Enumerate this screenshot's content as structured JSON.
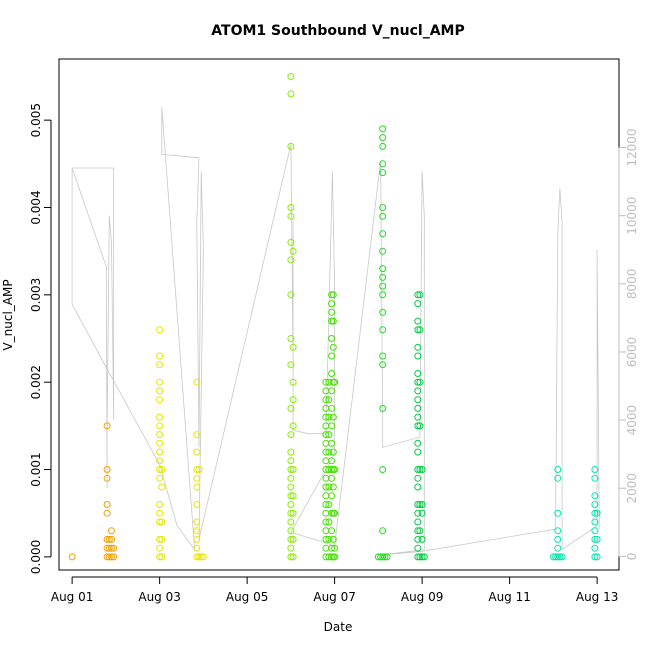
{
  "chart_data": {
    "type": "scatter",
    "title": "ATOM1 Southbound V_nucl_AMP",
    "xlabel": "Date",
    "ylabel": "V_nucl_AMP",
    "x_ticks": [
      "Aug 01",
      "Aug 03",
      "Aug 05",
      "Aug 07",
      "Aug 09",
      "Aug 11",
      "Aug 13"
    ],
    "x_tick_days": [
      1,
      3,
      5,
      7,
      9,
      11,
      13
    ],
    "xlim_days": [
      0.7,
      13.5
    ],
    "ylim": [
      -0.00015,
      0.0057
    ],
    "y_ticks": [
      0.0,
      0.001,
      0.002,
      0.003,
      0.004,
      0.005
    ],
    "y_tick_labels": [
      "0.000",
      "0.001",
      "0.002",
      "0.003",
      "0.004",
      "0.005"
    ],
    "y2lim": [
      -400,
      14600
    ],
    "y2_ticks": [
      0,
      2000,
      4000,
      6000,
      8000,
      10000,
      12000
    ],
    "y2_tick_labels": [
      "0",
      "2000",
      "4000",
      "6000",
      "8000",
      "10000",
      "12000"
    ],
    "series": [
      {
        "color": "#f0a000",
        "points": [
          [
            1.0,
            0.0
          ],
          [
            1.8,
            0.0015
          ],
          [
            1.8,
            0.001
          ],
          [
            1.8,
            0.0009
          ],
          [
            1.8,
            0.0006
          ],
          [
            1.8,
            0.0005
          ],
          [
            1.8,
            0.0002
          ],
          [
            1.8,
            0.0001
          ],
          [
            1.8,
            0.0
          ],
          [
            1.85,
            0.0002
          ],
          [
            1.85,
            0.0001
          ],
          [
            1.85,
            0.0
          ],
          [
            1.9,
            0.0003
          ],
          [
            1.9,
            0.0002
          ],
          [
            1.9,
            0.0001
          ],
          [
            1.9,
            0.0
          ],
          [
            1.95,
            0.0001
          ],
          [
            1.95,
            0.0
          ]
        ]
      },
      {
        "color": "#e6e600",
        "points": [
          [
            3.0,
            0.0026
          ],
          [
            3.0,
            0.0023
          ],
          [
            3.0,
            0.0022
          ],
          [
            3.0,
            0.002
          ],
          [
            3.0,
            0.0019
          ],
          [
            3.0,
            0.0018
          ],
          [
            3.0,
            0.0016
          ],
          [
            3.0,
            0.0015
          ],
          [
            3.0,
            0.0014
          ],
          [
            3.0,
            0.0013
          ],
          [
            3.0,
            0.0012
          ],
          [
            3.0,
            0.0011
          ],
          [
            3.0,
            0.001
          ],
          [
            3.0,
            0.0009
          ],
          [
            3.0,
            0.0006
          ],
          [
            3.0,
            0.0005
          ],
          [
            3.0,
            0.0004
          ],
          [
            3.0,
            0.0002
          ],
          [
            3.0,
            0.0001
          ],
          [
            3.0,
            0.0
          ],
          [
            3.05,
            0.001
          ],
          [
            3.05,
            0.0008
          ],
          [
            3.05,
            0.0004
          ],
          [
            3.05,
            0.0002
          ],
          [
            3.05,
            0.0
          ],
          [
            3.85,
            0.002
          ],
          [
            3.85,
            0.0014
          ],
          [
            3.85,
            0.0012
          ],
          [
            3.85,
            0.001
          ],
          [
            3.85,
            0.0009
          ],
          [
            3.85,
            0.0008
          ],
          [
            3.85,
            0.0006
          ],
          [
            3.85,
            0.0004
          ],
          [
            3.85,
            0.0003
          ],
          [
            3.85,
            0.0002
          ],
          [
            3.85,
            0.0001
          ],
          [
            3.85,
            0.0
          ],
          [
            3.9,
            0.001
          ],
          [
            3.9,
            0.0
          ],
          [
            3.95,
            0.0
          ],
          [
            4.0,
            0.0
          ]
        ]
      },
      {
        "color": "#88ee00",
        "points": [
          [
            6.0,
            0.0055
          ],
          [
            6.0,
            0.0053
          ],
          [
            6.0,
            0.0047
          ],
          [
            6.0,
            0.004
          ],
          [
            6.0,
            0.0039
          ],
          [
            6.0,
            0.0036
          ],
          [
            6.0,
            0.0034
          ],
          [
            6.0,
            0.003
          ],
          [
            6.0,
            0.0025
          ],
          [
            6.0,
            0.0022
          ],
          [
            6.0,
            0.0017
          ],
          [
            6.0,
            0.0014
          ],
          [
            6.0,
            0.0012
          ],
          [
            6.0,
            0.0011
          ],
          [
            6.0,
            0.001
          ],
          [
            6.0,
            0.0009
          ],
          [
            6.0,
            0.0008
          ],
          [
            6.0,
            0.0007
          ],
          [
            6.0,
            0.0006
          ],
          [
            6.0,
            0.0005
          ],
          [
            6.0,
            0.0004
          ],
          [
            6.0,
            0.0003
          ],
          [
            6.0,
            0.0002
          ],
          [
            6.0,
            0.0001
          ],
          [
            6.0,
            0.0
          ],
          [
            6.05,
            0.0035
          ],
          [
            6.05,
            0.0024
          ],
          [
            6.05,
            0.002
          ],
          [
            6.05,
            0.0018
          ],
          [
            6.05,
            0.0015
          ],
          [
            6.05,
            0.001
          ],
          [
            6.05,
            0.0007
          ],
          [
            6.05,
            0.0005
          ],
          [
            6.05,
            0.0002
          ],
          [
            6.05,
            0.0
          ]
        ]
      },
      {
        "color": "#44e000",
        "points": [
          [
            6.8,
            0.002
          ],
          [
            6.8,
            0.0019
          ],
          [
            6.8,
            0.0018
          ],
          [
            6.8,
            0.0017
          ],
          [
            6.8,
            0.0016
          ],
          [
            6.8,
            0.0015
          ],
          [
            6.8,
            0.0014
          ],
          [
            6.8,
            0.0013
          ],
          [
            6.8,
            0.0012
          ],
          [
            6.8,
            0.0011
          ],
          [
            6.8,
            0.001
          ],
          [
            6.8,
            0.0009
          ],
          [
            6.8,
            0.0008
          ],
          [
            6.8,
            0.0007
          ],
          [
            6.8,
            0.0006
          ],
          [
            6.8,
            0.0005
          ],
          [
            6.8,
            0.0004
          ],
          [
            6.8,
            0.0003
          ],
          [
            6.8,
            0.0002
          ],
          [
            6.8,
            0.0001
          ],
          [
            6.8,
            0.0
          ],
          [
            6.87,
            0.002
          ],
          [
            6.87,
            0.0018
          ],
          [
            6.87,
            0.0016
          ],
          [
            6.87,
            0.0014
          ],
          [
            6.87,
            0.0012
          ],
          [
            6.87,
            0.001
          ],
          [
            6.87,
            0.0008
          ],
          [
            6.87,
            0.0006
          ],
          [
            6.87,
            0.0004
          ],
          [
            6.87,
            0.0002
          ],
          [
            6.87,
            0.0
          ],
          [
            6.93,
            0.003
          ],
          [
            6.93,
            0.0029
          ],
          [
            6.93,
            0.0028
          ],
          [
            6.93,
            0.0027
          ],
          [
            6.93,
            0.0025
          ],
          [
            6.93,
            0.0023
          ],
          [
            6.93,
            0.0021
          ],
          [
            6.93,
            0.0019
          ],
          [
            6.93,
            0.0017
          ],
          [
            6.93,
            0.0015
          ],
          [
            6.93,
            0.0013
          ],
          [
            6.93,
            0.0011
          ],
          [
            6.93,
            0.001
          ],
          [
            6.93,
            0.0009
          ],
          [
            6.93,
            0.0007
          ],
          [
            6.93,
            0.0005
          ],
          [
            6.93,
            0.0003
          ],
          [
            6.93,
            0.0001
          ],
          [
            6.93,
            0.0
          ],
          [
            6.97,
            0.003
          ],
          [
            6.97,
            0.0027
          ],
          [
            6.97,
            0.0024
          ],
          [
            6.97,
            0.002
          ],
          [
            6.97,
            0.0016
          ],
          [
            6.97,
            0.0012
          ],
          [
            6.97,
            0.001
          ],
          [
            6.97,
            0.0008
          ],
          [
            6.97,
            0.0005
          ],
          [
            6.97,
            0.0002
          ],
          [
            6.97,
            0.0
          ],
          [
            7.0,
            0.002
          ],
          [
            7.0,
            0.001
          ],
          [
            7.0,
            0.0005
          ],
          [
            7.0,
            0.0001
          ],
          [
            7.0,
            0.0
          ]
        ]
      },
      {
        "color": "#22dd22",
        "points": [
          [
            8.0,
            0.0
          ],
          [
            8.05,
            0.0
          ],
          [
            8.1,
            0.0
          ],
          [
            8.1,
            0.0003
          ],
          [
            8.1,
            0.001
          ],
          [
            8.1,
            0.0017
          ],
          [
            8.1,
            0.0022
          ],
          [
            8.1,
            0.0023
          ],
          [
            8.1,
            0.0026
          ],
          [
            8.1,
            0.0028
          ],
          [
            8.1,
            0.003
          ],
          [
            8.1,
            0.0031
          ],
          [
            8.1,
            0.0032
          ],
          [
            8.1,
            0.0033
          ],
          [
            8.1,
            0.0035
          ],
          [
            8.1,
            0.0037
          ],
          [
            8.1,
            0.0039
          ],
          [
            8.1,
            0.004
          ],
          [
            8.1,
            0.0044
          ],
          [
            8.1,
            0.0045
          ],
          [
            8.1,
            0.0047
          ],
          [
            8.1,
            0.0048
          ],
          [
            8.1,
            0.0049
          ],
          [
            8.15,
            0.0
          ],
          [
            8.2,
            0.0
          ]
        ]
      },
      {
        "color": "#00cc44",
        "points": [
          [
            8.9,
            0.003
          ],
          [
            8.9,
            0.0029
          ],
          [
            8.9,
            0.0027
          ],
          [
            8.9,
            0.0026
          ],
          [
            8.9,
            0.0024
          ],
          [
            8.9,
            0.0023
          ],
          [
            8.9,
            0.0021
          ],
          [
            8.9,
            0.002
          ],
          [
            8.9,
            0.0019
          ],
          [
            8.9,
            0.0018
          ],
          [
            8.9,
            0.0017
          ],
          [
            8.9,
            0.0016
          ],
          [
            8.9,
            0.0015
          ],
          [
            8.9,
            0.0013
          ],
          [
            8.9,
            0.0012
          ],
          [
            8.9,
            0.001
          ],
          [
            8.9,
            0.0009
          ],
          [
            8.9,
            0.0008
          ],
          [
            8.9,
            0.0006
          ],
          [
            8.9,
            0.0005
          ],
          [
            8.9,
            0.0004
          ],
          [
            8.9,
            0.0003
          ],
          [
            8.9,
            0.0002
          ],
          [
            8.9,
            0.0001
          ],
          [
            8.9,
            0.0
          ],
          [
            8.95,
            0.003
          ],
          [
            8.95,
            0.0026
          ],
          [
            8.95,
            0.002
          ],
          [
            8.95,
            0.0015
          ],
          [
            8.95,
            0.001
          ],
          [
            8.95,
            0.0006
          ],
          [
            8.95,
            0.0003
          ],
          [
            8.95,
            0.0
          ],
          [
            9.0,
            0.001
          ],
          [
            9.0,
            0.0006
          ],
          [
            9.0,
            0.0005
          ],
          [
            9.0,
            0.0002
          ],
          [
            9.0,
            0.0
          ],
          [
            9.05,
            0.0
          ]
        ]
      },
      {
        "color": "#00e6b0",
        "points": [
          [
            12.0,
            0.0
          ],
          [
            12.05,
            0.0
          ],
          [
            12.1,
            0.001
          ],
          [
            12.1,
            0.0009
          ],
          [
            12.1,
            0.0005
          ],
          [
            12.1,
            0.0003
          ],
          [
            12.1,
            0.0002
          ],
          [
            12.1,
            0.0001
          ],
          [
            12.1,
            0.0
          ],
          [
            12.15,
            0.0
          ],
          [
            12.2,
            0.0
          ],
          [
            12.95,
            0.001
          ],
          [
            12.95,
            0.0009
          ],
          [
            12.95,
            0.0007
          ],
          [
            12.95,
            0.0006
          ],
          [
            12.95,
            0.0005
          ],
          [
            12.95,
            0.0004
          ],
          [
            12.95,
            0.0003
          ],
          [
            12.95,
            0.0002
          ],
          [
            12.95,
            0.0001
          ],
          [
            12.95,
            0.0
          ],
          [
            13.0,
            0.0005
          ],
          [
            13.0,
            0.0002
          ],
          [
            13.0,
            0.0
          ]
        ]
      }
    ],
    "overlay_line": {
      "color": "#c8c8c8",
      "axis": "right",
      "points": [
        [
          1.0,
          11400
        ],
        [
          1.95,
          11400
        ],
        [
          1.95,
          4000
        ],
        [
          1.9,
          9200
        ],
        [
          1.85,
          10000
        ],
        [
          1.8,
          3800
        ],
        [
          1.8,
          2000
        ],
        [
          1.78,
          8500
        ],
        [
          1.0,
          11400
        ],
        [
          1.0,
          7400
        ],
        [
          1.8,
          5500
        ],
        [
          3.0,
          2700
        ],
        [
          3.4,
          900
        ],
        [
          3.8,
          200
        ],
        [
          3.05,
          13200
        ],
        [
          3.05,
          11800
        ],
        [
          3.9,
          11700
        ],
        [
          3.85,
          9800
        ],
        [
          3.9,
          3200
        ],
        [
          3.95,
          11300
        ],
        [
          4.0,
          9000
        ],
        [
          3.9,
          500
        ],
        [
          6.0,
          12100
        ],
        [
          6.05,
          5600
        ],
        [
          6.05,
          9900
        ],
        [
          6.05,
          3700
        ],
        [
          6.4,
          3600
        ],
        [
          6.8,
          3600
        ],
        [
          6.9,
          8800
        ],
        [
          6.95,
          11300
        ],
        [
          7.0,
          8000
        ],
        [
          7.0,
          3000
        ],
        [
          6.0,
          700
        ],
        [
          6.8,
          400
        ],
        [
          7.0,
          300
        ],
        [
          8.05,
          11600
        ],
        [
          8.1,
          4000
        ],
        [
          8.1,
          3200
        ],
        [
          8.95,
          3500
        ],
        [
          9.0,
          11300
        ],
        [
          9.05,
          10000
        ],
        [
          9.05,
          200
        ],
        [
          8.1,
          50
        ],
        [
          9.0,
          150
        ],
        [
          12.05,
          800
        ],
        [
          12.1,
          9500
        ],
        [
          12.15,
          10800
        ],
        [
          12.2,
          9800
        ],
        [
          12.2,
          200
        ],
        [
          13.0,
          900
        ],
        [
          13.0,
          9000
        ],
        [
          13.05,
          800
        ]
      ]
    }
  }
}
